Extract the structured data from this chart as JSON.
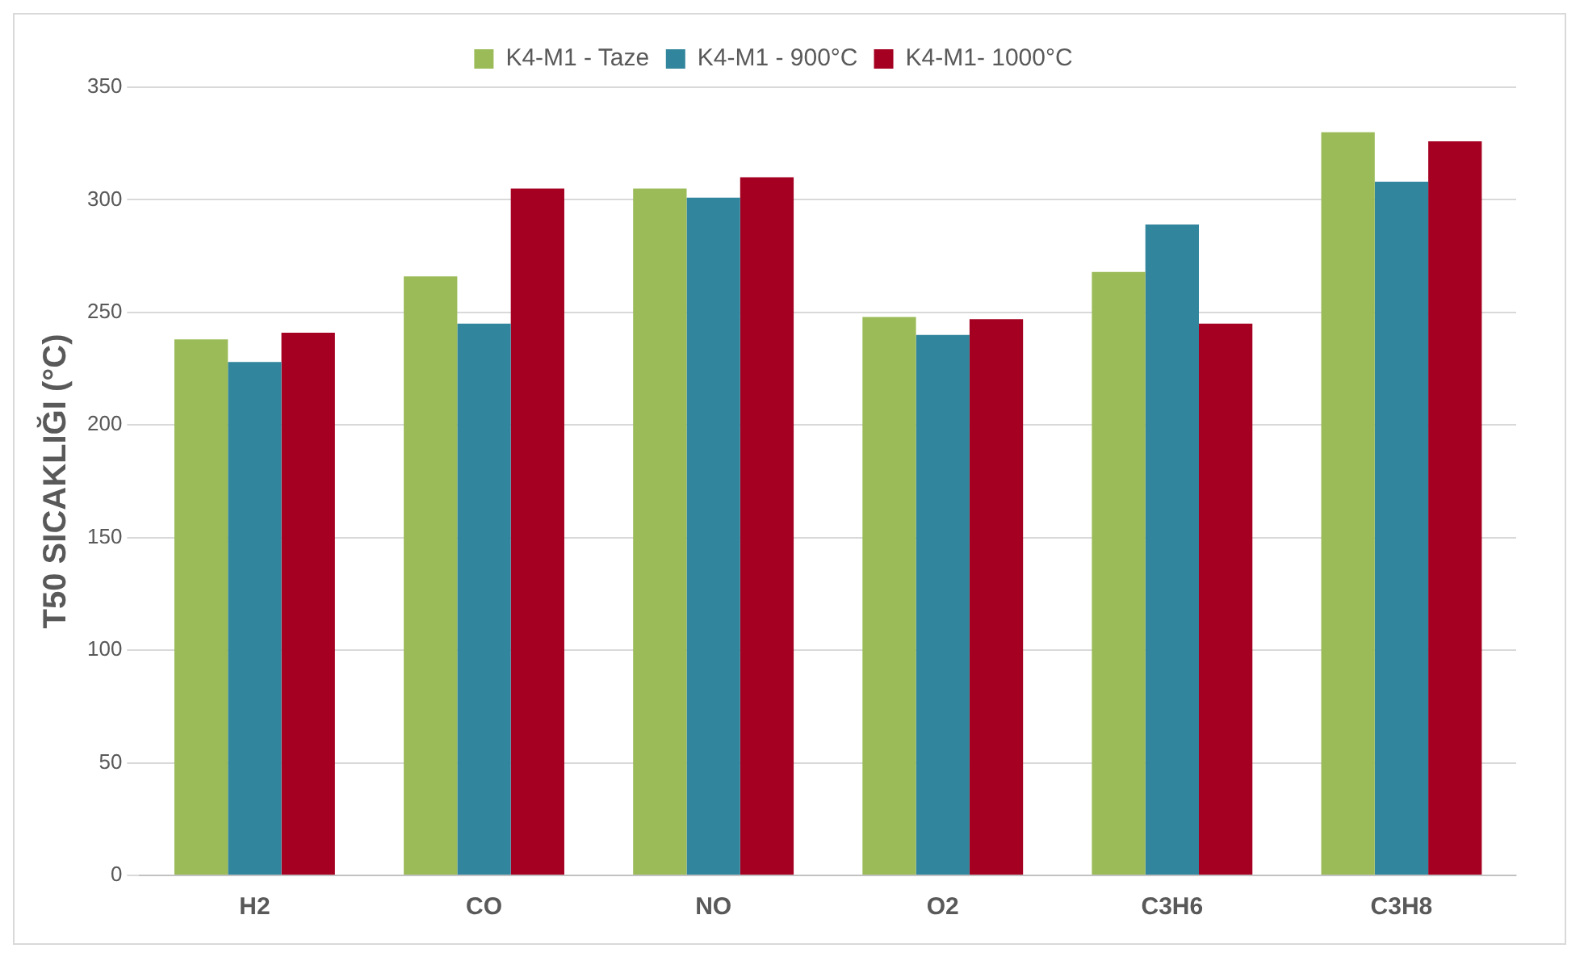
{
  "chart_data": {
    "type": "bar",
    "ylabel": "T50 SICAKLIĞI (°C)",
    "categories": [
      "H2",
      "CO",
      "NO",
      "O2",
      "C3H6",
      "C3H8"
    ],
    "series": [
      {
        "name": "K4-M1 - Taze",
        "color": "#9bbb59",
        "values": [
          238,
          266,
          305,
          248,
          268,
          330
        ]
      },
      {
        "name": "K4-M1 - 900°C",
        "color": "#31859c",
        "values": [
          228,
          245,
          301,
          240,
          289,
          308
        ]
      },
      {
        "name": "K4-M1- 1000°C",
        "color": "#a50021",
        "values": [
          241,
          305,
          310,
          247,
          245,
          326
        ]
      }
    ],
    "ylim": [
      0,
      350
    ],
    "yticks": [
      0,
      50,
      100,
      150,
      200,
      250,
      300,
      350
    ],
    "grid": "y",
    "legend": "top"
  }
}
